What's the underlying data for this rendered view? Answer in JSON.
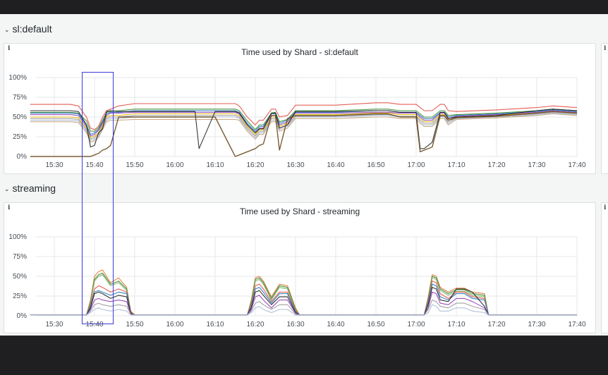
{
  "rows": [
    {
      "title": "sl:default"
    },
    {
      "title": "streaming"
    }
  ],
  "panels": [
    {
      "title": "Time used by Shard - sl:default",
      "info_icon": "i",
      "chart_data": {
        "type": "line",
        "y_ticks": [
          "100%",
          "75%",
          "50%",
          "25%",
          "0%"
        ],
        "x_ticks": [
          "15:30",
          "15:40",
          "15:50",
          "16:00",
          "16:10",
          "16:20",
          "16:30",
          "16:40",
          "16:50",
          "17:00",
          "17:10",
          "17:20",
          "17:30",
          "17:40"
        ],
        "ylim": [
          0,
          100
        ],
        "y_unit": "%",
        "grid": true,
        "x": [
          "15:24",
          "15:34",
          "15:36",
          "15:38",
          "15:39",
          "15:40",
          "15:41",
          "15:42",
          "15:43",
          "15:44",
          "15:46",
          "15:50",
          "16:00",
          "16:05",
          "16:06",
          "16:10",
          "16:15",
          "16:16",
          "16:18",
          "16:20",
          "16:21",
          "16:22",
          "16:24",
          "16:25",
          "16:26",
          "16:28",
          "16:30",
          "16:40",
          "16:50",
          "16:53",
          "16:56",
          "17:00",
          "17:01",
          "17:02",
          "17:04",
          "17:06",
          "17:07",
          "17:08",
          "17:10",
          "17:20",
          "17:30",
          "17:34",
          "17:40"
        ],
        "series": [
          {
            "color": "#e24d42",
            "values": [
              66,
              66,
              64,
              50,
              36,
              34,
              38,
              50,
              58,
              60,
              64,
              67,
              67,
              67,
              67,
              67,
              67,
              64,
              50,
              40,
              46,
              46,
              60,
              60,
              50,
              52,
              65,
              65,
              68,
              68,
              66,
              66,
              62,
              58,
              58,
              66,
              66,
              58,
              57,
              59,
              62,
              64,
              62
            ]
          },
          {
            "color": "#37872d",
            "values": [
              56,
              56,
              55,
              45,
              32,
              32,
              36,
              46,
              56,
              57,
              58,
              60,
              60,
              60,
              60,
              60,
              60,
              58,
              45,
              34,
              40,
              40,
              55,
              56,
              44,
              47,
              58,
              58,
              60,
              60,
              58,
              58,
              54,
              50,
              50,
              58,
              58,
              52,
              53,
              55,
              58,
              60,
              58
            ]
          },
          {
            "color": "#1f78c1",
            "values": [
              55,
              55,
              54,
              40,
              28,
              30,
              34,
              44,
              54,
              56,
              56,
              58,
              58,
              58,
              58,
              58,
              58,
              56,
              42,
              32,
              38,
              38,
              54,
              54,
              42,
              46,
              56,
              56,
              58,
              58,
              56,
              56,
              52,
              48,
              48,
              56,
              56,
              50,
              52,
              54,
              57,
              59,
              57
            ]
          },
          {
            "color": "#8f3bb8",
            "values": [
              53,
              53,
              52,
              38,
              26,
              28,
              33,
              42,
              52,
              55,
              55,
              56,
              56,
              56,
              56,
              56,
              56,
              54,
              40,
              30,
              36,
              36,
              52,
              52,
              40,
              44,
              55,
              55,
              56,
              56,
              55,
              55,
              50,
              46,
              46,
              55,
              55,
              48,
              51,
              53,
              56,
              58,
              56
            ]
          },
          {
            "color": "#e0b400",
            "values": [
              50,
              50,
              49,
              36,
              24,
              26,
              30,
              40,
              50,
              52,
              52,
              54,
              54,
              54,
              54,
              54,
              54,
              52,
              38,
              28,
              34,
              34,
              50,
              50,
              38,
              42,
              53,
              53,
              55,
              55,
              53,
              53,
              48,
              44,
              44,
              53,
              53,
              46,
              50,
              52,
              55,
              57,
              55
            ]
          },
          {
            "color": "#999999",
            "values": [
              48,
              48,
              47,
              34,
              22,
              24,
              28,
              38,
              48,
              50,
              50,
              52,
              52,
              52,
              52,
              52,
              52,
              50,
              36,
              26,
              32,
              32,
              48,
              48,
              36,
              40,
              51,
              51,
              53,
              53,
              51,
              51,
              46,
              42,
              42,
              51,
              51,
              44,
              49,
              51,
              54,
              56,
              54
            ]
          },
          {
            "color": "#a9b9d8",
            "values": [
              46,
              46,
              45,
              32,
              20,
              22,
              26,
              36,
              46,
              48,
              48,
              50,
              50,
              50,
              50,
              50,
              50,
              48,
              34,
              24,
              30,
              30,
              46,
              46,
              34,
              38,
              50,
              50,
              52,
              52,
              50,
              50,
              44,
              40,
              40,
              50,
              50,
              42,
              48,
              50,
              53,
              55,
              53
            ]
          },
          {
            "color": "#c4a27a",
            "values": [
              44,
              44,
              43,
              30,
              18,
              20,
              24,
              34,
              44,
              46,
              46,
              47,
              47,
              47,
              47,
              47,
              47,
              46,
              32,
              22,
              28,
              28,
              44,
              44,
              32,
              36,
              48,
              48,
              50,
              50,
              48,
              48,
              42,
              38,
              38,
              48,
              48,
              40,
              47,
              49,
              52,
              54,
              52
            ]
          },
          {
            "color": "#222222",
            "values": [
              58,
              58,
              57,
              40,
              12,
              14,
              30,
              35,
              57,
              58,
              57,
              57,
              57,
              57,
              10,
              57,
              57,
              55,
              40,
              30,
              35,
              35,
              55,
              55,
              36,
              40,
              57,
              57,
              58,
              58,
              56,
              56,
              10,
              10,
              18,
              56,
              56,
              48,
              50,
              52,
              58,
              60,
              58
            ]
          },
          {
            "color": "#6d4c1f",
            "values": [
              0,
              0,
              0,
              0,
              0,
              2,
              4,
              8,
              10,
              14,
              50,
              50,
              50,
              50,
              50,
              50,
              0,
              2,
              6,
              10,
              14,
              16,
              52,
              52,
              8,
              48,
              52,
              52,
              54,
              54,
              50,
              50,
              6,
              8,
              12,
              52,
              52,
              46,
              49,
              51,
              55,
              57,
              55
            ]
          }
        ]
      }
    },
    {
      "title": "Time used by Shard - streaming",
      "info_icon": "i",
      "chart_data": {
        "type": "line",
        "y_ticks": [
          "100%",
          "75%",
          "50%",
          "25%",
          "0%"
        ],
        "x_ticks": [
          "15:30",
          "15:40",
          "15:50",
          "16:00",
          "16:10",
          "16:20",
          "16:30",
          "16:40",
          "16:50",
          "17:00",
          "17:10",
          "17:20",
          "17:30",
          "17:40"
        ],
        "ylim": [
          0,
          100
        ],
        "y_unit": "%",
        "grid": true,
        "x": [
          "15:24",
          "15:38",
          "15:39",
          "15:40",
          "15:41",
          "15:42",
          "15:44",
          "15:46",
          "15:48",
          "15:49",
          "15:50",
          "16:18",
          "16:19",
          "16:20",
          "16:21",
          "16:22",
          "16:24",
          "16:26",
          "16:28",
          "16:30",
          "16:31",
          "16:32",
          "17:02",
          "17:03",
          "17:04",
          "17:05",
          "17:06",
          "17:08",
          "17:10",
          "17:12",
          "17:14",
          "17:17",
          "17:18",
          "17:40"
        ],
        "series": [
          {
            "color": "#e0752d",
            "values": [
              1,
              1,
              20,
              50,
              56,
              58,
              42,
              48,
              36,
              6,
              1,
              1,
              20,
              48,
              50,
              44,
              24,
              40,
              38,
              10,
              1,
              1,
              1,
              24,
              52,
              50,
              36,
              30,
              35,
              35,
              30,
              28,
              1,
              1
            ]
          },
          {
            "color": "#37872d",
            "values": [
              1,
              1,
              18,
              46,
              52,
              54,
              40,
              44,
              34,
              5,
              1,
              1,
              18,
              46,
              48,
              42,
              22,
              38,
              36,
              8,
              1,
              1,
              1,
              22,
              50,
              48,
              34,
              28,
              33,
              33,
              28,
              26,
              1,
              1
            ]
          },
          {
            "color": "#7eb26d",
            "values": [
              1,
              1,
              16,
              44,
              50,
              52,
              38,
              42,
              32,
              4,
              1,
              1,
              16,
              44,
              46,
              40,
              20,
              36,
              34,
              7,
              1,
              1,
              1,
              20,
              48,
              46,
              32,
              26,
              31,
              31,
              26,
              24,
              1,
              1
            ]
          },
          {
            "color": "#e24d42",
            "values": [
              1,
              1,
              14,
              34,
              38,
              36,
              30,
              34,
              30,
              4,
              1,
              1,
              14,
              38,
              40,
              34,
              18,
              30,
              30,
              6,
              1,
              1,
              1,
              18,
              44,
              42,
              28,
              22,
              30,
              30,
              24,
              22,
              1,
              1
            ]
          },
          {
            "color": "#1f78c1",
            "values": [
              1,
              1,
              12,
              30,
              32,
              30,
              26,
              30,
              28,
              3,
              1,
              1,
              12,
              34,
              36,
              30,
              16,
              28,
              28,
              5,
              1,
              1,
              1,
              16,
              40,
              38,
              24,
              20,
              28,
              28,
              22,
              20,
              1,
              1
            ]
          },
          {
            "color": "#222222",
            "values": [
              1,
              1,
              10,
              28,
              30,
              28,
              22,
              26,
              24,
              3,
              1,
              1,
              10,
              30,
              32,
              26,
              14,
              24,
              24,
              4,
              1,
              1,
              1,
              14,
              36,
              34,
              20,
              18,
              34,
              34,
              30,
              12,
              1,
              1
            ]
          },
          {
            "color": "#8f3bb8",
            "values": [
              1,
              1,
              8,
              20,
              22,
              20,
              18,
              20,
              18,
              2,
              1,
              1,
              8,
              24,
              26,
              20,
              10,
              20,
              20,
              3,
              1,
              1,
              1,
              10,
              30,
              28,
              16,
              14,
              22,
              22,
              18,
              10,
              1,
              1
            ]
          },
          {
            "color": "#999999",
            "values": [
              1,
              1,
              6,
              14,
              16,
              14,
              12,
              14,
              12,
              2,
              1,
              1,
              6,
              16,
              18,
              14,
              8,
              14,
              14,
              2,
              1,
              1,
              1,
              8,
              20,
              18,
              12,
              10,
              16,
              16,
              12,
              8,
              1,
              1
            ]
          },
          {
            "color": "#a9b9d8",
            "values": [
              1,
              1,
              4,
              8,
              10,
              8,
              6,
              8,
              6,
              1,
              1,
              1,
              4,
              10,
              12,
              8,
              4,
              8,
              8,
              1,
              1,
              1,
              1,
              4,
              14,
              12,
              6,
              6,
              10,
              10,
              6,
              4,
              1,
              1
            ]
          }
        ]
      }
    }
  ]
}
